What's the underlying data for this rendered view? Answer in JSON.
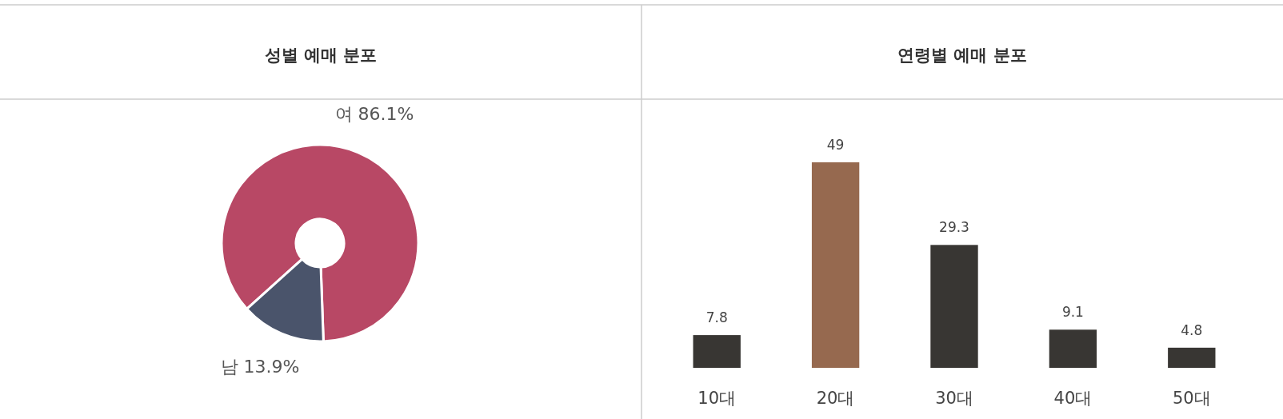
{
  "chart_data": [
    {
      "type": "donut",
      "title": "성별 예매 분포",
      "categories": [
        "여",
        "남"
      ],
      "values": [
        86.1,
        13.9
      ],
      "value_labels": [
        "86.1%",
        "13.9%"
      ],
      "colors": [
        "#b84865",
        "#4a546b"
      ]
    },
    {
      "type": "bar",
      "title": "연령별 예매 분포",
      "categories": [
        "10대",
        "20대",
        "30대",
        "40대",
        "50대"
      ],
      "values": [
        7.8,
        49,
        29.3,
        9.1,
        4.8
      ],
      "colors": [
        "#383633",
        "#96694f",
        "#383633",
        "#383633",
        "#383633"
      ],
      "data_labels": true
    }
  ]
}
